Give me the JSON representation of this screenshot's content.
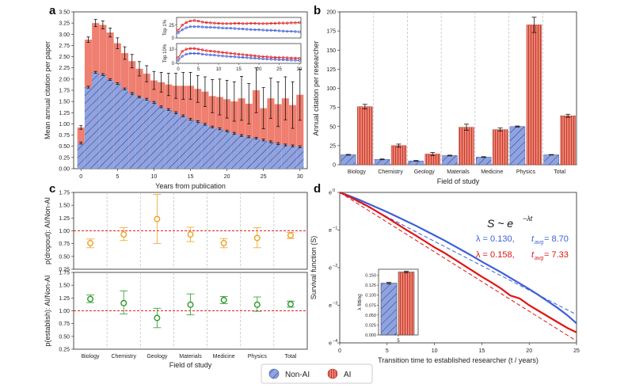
{
  "colors": {
    "non_ai": "#8fa3e0",
    "ai": "#ef7f70",
    "non_ai_line": "#3d5fd8",
    "ai_line": "#e01515",
    "err": "#111111",
    "dropout": "#f0a020",
    "establish": "#2a9a2a",
    "ref": "#e02020"
  },
  "panel_labels": {
    "a": "a",
    "b": "b",
    "c": "c",
    "d": "d"
  },
  "legend": {
    "non_ai": "Non-AI",
    "ai": "AI"
  },
  "chart_data": [
    {
      "id": "a",
      "type": "bar",
      "xlabel": "Years from publication",
      "ylabel": "Mean annual citation per paper",
      "xlim": [
        -1,
        31
      ],
      "ylim": [
        0,
        3.5
      ],
      "xticks": [
        "0",
        "5",
        "10",
        "15",
        "20",
        "25",
        "30"
      ],
      "yticks": [
        "0.00",
        "0.25",
        "0.50",
        "0.75",
        "1.00",
        "1.25",
        "1.50",
        "1.75",
        "2.00",
        "2.25",
        "2.50",
        "2.75",
        "3.00",
        "3.25",
        "3.50"
      ],
      "x": [
        0,
        1,
        2,
        3,
        4,
        5,
        6,
        7,
        8,
        9,
        10,
        11,
        12,
        13,
        14,
        15,
        16,
        17,
        18,
        19,
        20,
        21,
        22,
        23,
        24,
        25,
        26,
        27,
        28,
        29,
        30
      ],
      "series": [
        {
          "name": "Non-AI",
          "values": [
            0.57,
            1.82,
            2.15,
            2.1,
            1.99,
            1.9,
            1.78,
            1.68,
            1.6,
            1.55,
            1.48,
            1.38,
            1.32,
            1.25,
            1.18,
            1.1,
            1.05,
            0.99,
            0.93,
            0.89,
            0.84,
            0.79,
            0.74,
            0.71,
            0.68,
            0.64,
            0.6,
            0.56,
            0.53,
            0.51,
            0.49
          ],
          "errors": [
            0.02,
            0.02,
            0.02,
            0.02,
            0.02,
            0.02,
            0.02,
            0.02,
            0.02,
            0.02,
            0.02,
            0.02,
            0.02,
            0.02,
            0.02,
            0.02,
            0.02,
            0.02,
            0.02,
            0.02,
            0.02,
            0.02,
            0.02,
            0.02,
            0.02,
            0.02,
            0.02,
            0.02,
            0.02,
            0.02,
            0.02
          ]
        },
        {
          "name": "AI",
          "values": [
            0.92,
            2.88,
            3.25,
            3.21,
            3.04,
            2.8,
            2.58,
            2.4,
            2.23,
            2.12,
            1.97,
            1.93,
            1.88,
            1.85,
            1.85,
            1.85,
            1.78,
            1.72,
            1.62,
            1.6,
            1.55,
            1.5,
            1.57,
            1.45,
            1.75,
            1.35,
            1.57,
            1.44,
            1.57,
            1.42,
            1.65
          ],
          "errors": [
            0.04,
            0.06,
            0.08,
            0.09,
            0.1,
            0.12,
            0.14,
            0.15,
            0.16,
            0.18,
            0.2,
            0.22,
            0.25,
            0.28,
            0.3,
            0.3,
            0.3,
            0.33,
            0.37,
            0.4,
            0.42,
            0.44,
            0.49,
            0.45,
            0.5,
            0.46,
            0.45,
            0.5,
            0.48,
            0.52,
            0.57
          ]
        }
      ],
      "insets": [
        {
          "ylabel": "Top 1%",
          "yticks": [
            "0",
            "25"
          ],
          "ylim": [
            0,
            40
          ],
          "xlim": [
            0,
            30
          ],
          "non_ai": [
            10,
            16,
            20,
            22,
            22,
            22,
            21.5,
            21,
            21,
            20.5,
            20,
            19.5,
            19,
            19,
            18.5,
            18,
            17.5,
            17,
            16.5,
            16,
            16,
            15.5,
            15,
            15,
            14.5,
            14,
            13.5,
            13,
            13,
            12.5,
            12
          ],
          "ai": [
            15,
            25,
            30,
            33,
            34,
            33,
            31,
            30,
            29.5,
            29,
            28.5,
            28,
            28,
            28,
            28.5,
            28.5,
            28,
            28,
            28.5,
            28.5,
            28,
            28,
            28,
            28.5,
            28.5,
            29,
            29,
            29,
            29.5,
            29.5,
            30
          ]
        },
        {
          "ylabel": "Top 10%",
          "yticks": [
            "0",
            "10"
          ],
          "ylim": [
            0,
            14
          ],
          "xlim": [
            0,
            30
          ],
          "non_ai": [
            2,
            5,
            6.5,
            7,
            7,
            7,
            6.5,
            6.2,
            6,
            5.8,
            5.5,
            5.2,
            5,
            4.8,
            4.6,
            4.4,
            4.2,
            4,
            3.8,
            3.6,
            3.4,
            3.2,
            3,
            2.9,
            2.8,
            2.6,
            2.5,
            2.4,
            2.3,
            2.2,
            2.1
          ],
          "ai": [
            4,
            8.5,
            10,
            10.5,
            10.5,
            10,
            9.5,
            9,
            8.7,
            8.4,
            8,
            7.7,
            7.4,
            7.1,
            6.8,
            6.5,
            6.2,
            5.9,
            5.6,
            5.3,
            5,
            4.8,
            4.6,
            4.4,
            4.2,
            4.1,
            4,
            3.9,
            3.8,
            3.7,
            3.6
          ]
        }
      ],
      "inset_xticks": [
        "0",
        "5",
        "10",
        "15",
        "20",
        "25",
        "30"
      ]
    },
    {
      "id": "b",
      "type": "bar",
      "xlabel": "Field of study",
      "ylabel": "Annual citation per researcher",
      "ylim": [
        0,
        200
      ],
      "yticks": [
        "0",
        "25",
        "50",
        "75",
        "100",
        "125",
        "150",
        "175",
        "200"
      ],
      "categories": [
        "Biology",
        "Chemistry",
        "Geology",
        "Materials",
        "Medicine",
        "Physics",
        "Total"
      ],
      "series": [
        {
          "name": "Non-AI",
          "values": [
            13,
            7,
            5,
            12,
            10,
            50,
            13
          ],
          "errors": [
            0.5,
            0.5,
            0.5,
            0.5,
            0.5,
            0.7,
            0.3
          ]
        },
        {
          "name": "AI",
          "values": [
            76,
            25,
            14,
            49,
            46,
            183,
            64
          ],
          "errors": [
            3,
            2,
            2,
            4,
            2,
            10,
            2
          ]
        }
      ]
    },
    {
      "id": "c_top",
      "type": "scatter",
      "ylabel": "p(dropout): AI/Non-AI",
      "ylim": [
        0.25,
        1.75
      ],
      "yticks": [
        "0.25",
        "0.50",
        "0.75",
        "1.00",
        "1.25",
        "1.50",
        "1.75"
      ],
      "reference": 1.0,
      "categories": [
        "Biology",
        "Chemistry",
        "Geology",
        "Materials",
        "Medicine",
        "Physics",
        "Total"
      ],
      "values": [
        0.76,
        0.93,
        1.23,
        0.93,
        0.76,
        0.86,
        0.91
      ],
      "lower": [
        0.67,
        0.81,
        0.75,
        0.79,
        0.67,
        0.67,
        0.85
      ],
      "upper": [
        0.84,
        1.06,
        1.71,
        1.07,
        0.85,
        1.06,
        0.97
      ]
    },
    {
      "id": "c_bottom",
      "type": "scatter",
      "xlabel": "Field of study",
      "ylabel": "p(establish): AI/Non-AI",
      "ylim": [
        0.25,
        1.75
      ],
      "yticks": [
        "0.25",
        "0.50",
        "0.75",
        "1.00",
        "1.25",
        "1.50",
        "1.75"
      ],
      "reference": 1.0,
      "categories": [
        "Biology",
        "Chemistry",
        "Geology",
        "Materials",
        "Medicine",
        "Physics",
        "Total"
      ],
      "values": [
        1.23,
        1.15,
        0.86,
        1.12,
        1.21,
        1.12,
        1.13
      ],
      "lower": [
        1.16,
        0.94,
        0.67,
        0.92,
        1.14,
        0.99,
        1.07
      ],
      "upper": [
        1.31,
        1.39,
        1.05,
        1.33,
        1.28,
        1.27,
        1.19
      ]
    },
    {
      "id": "d",
      "type": "line",
      "xlabel": "Transition time to established researcher (t / years)",
      "ylabel": "Survival function (S)",
      "xlim": [
        0,
        25
      ],
      "xticks": [
        "0",
        "5",
        "10",
        "15",
        "20",
        "25"
      ],
      "ylim_lnS": [
        -4,
        0
      ],
      "yticks": [
        {
          "base": "e",
          "exp": "0"
        },
        {
          "base": "e",
          "exp": "−1"
        },
        {
          "base": "e",
          "exp": "−2"
        },
        {
          "base": "e",
          "exp": "−3"
        },
        {
          "base": "e",
          "exp": "−4"
        }
      ],
      "formula": {
        "lhs": "S ~ e",
        "exp": "−λt"
      },
      "fits": [
        {
          "name": "Non-AI",
          "lambda_text": "λ = 0.130, ",
          "t_avg_text": "t",
          "t_sub": "avg",
          "t_val": " = 8.70",
          "lambda": 0.13
        },
        {
          "name": "AI",
          "lambda_text": "λ = 0.158, ",
          "t_avg_text": "t",
          "t_sub": "avg",
          "t_val": " = 7.33",
          "lambda": 0.158
        }
      ],
      "series": [
        {
          "name": "Non-AI",
          "t": [
            0,
            1,
            2,
            3,
            4,
            5,
            6,
            7,
            8,
            9,
            10,
            11,
            12,
            13,
            14,
            15,
            16,
            17,
            18,
            19,
            20,
            21,
            22,
            23,
            24,
            25
          ],
          "lnS": [
            0,
            -0.09,
            -0.19,
            -0.3,
            -0.41,
            -0.52,
            -0.64,
            -0.76,
            -0.88,
            -1.01,
            -1.14,
            -1.27,
            -1.41,
            -1.55,
            -1.69,
            -1.84,
            -1.98,
            -2.12,
            -2.27,
            -2.42,
            -2.57,
            -2.73,
            -2.9,
            -3.07,
            -3.26,
            -3.48
          ]
        },
        {
          "name": "AI",
          "t": [
            0,
            1,
            2,
            3,
            4,
            5,
            6,
            7,
            8,
            9,
            10,
            11,
            12,
            13,
            14,
            15,
            16,
            17,
            18,
            19,
            20,
            21,
            22,
            23,
            24,
            25
          ],
          "lnS": [
            0,
            -0.11,
            -0.24,
            -0.37,
            -0.52,
            -0.67,
            -0.83,
            -0.99,
            -1.14,
            -1.3,
            -1.46,
            -1.6,
            -1.76,
            -1.92,
            -2.08,
            -2.24,
            -2.39,
            -2.55,
            -2.74,
            -2.82,
            -3.0,
            -3.15,
            -3.3,
            -3.45,
            -3.6,
            -3.72
          ]
        }
      ],
      "inset": {
        "type": "bar",
        "ylabel": "λ fitting",
        "xtick": "5",
        "yticks": [
          "0.000",
          "0.025",
          "0.050",
          "0.075",
          "0.100",
          "0.125",
          "0.150"
        ],
        "ylim": [
          0,
          0.165
        ],
        "values": [
          0.13,
          0.158
        ],
        "errors": [
          0.002,
          0.002
        ]
      }
    }
  ]
}
